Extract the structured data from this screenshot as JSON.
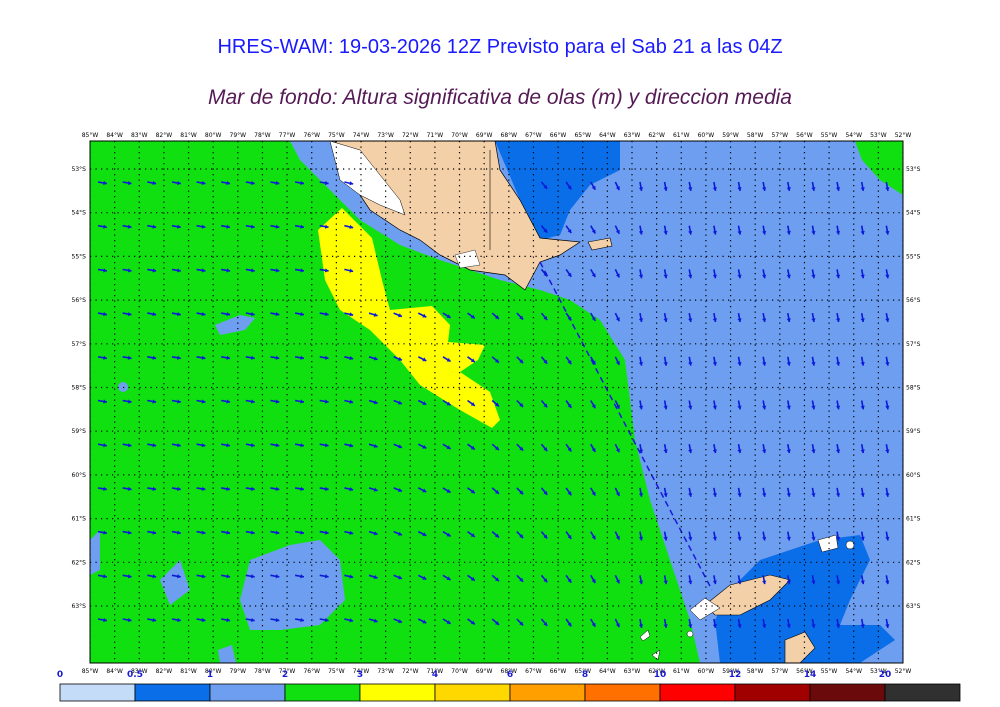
{
  "header": {
    "title": "HRES-WAM: 19-03-2026 12Z Previsto para el Sab 21 a las 04Z",
    "subtitle": "Mar de fondo: Altura significativa de olas (m) y direccion media"
  },
  "map": {
    "lon_labels": [
      "85°W",
      "84°W",
      "83°W",
      "82°W",
      "81°W",
      "80°W",
      "79°W",
      "78°W",
      "77°W",
      "76°W",
      "75°W",
      "74°W",
      "73°W",
      "72°W",
      "71°W",
      "70°W",
      "69°W",
      "68°W",
      "67°W",
      "66°W",
      "65°W",
      "64°W",
      "63°W",
      "62°W",
      "61°W",
      "60°W",
      "59°W",
      "58°W",
      "57°W",
      "56°W",
      "55°W",
      "54°W",
      "53°W",
      "52°W"
    ],
    "lat_labels": [
      "53°S",
      "54°S",
      "55°S",
      "56°S",
      "57°S",
      "58°S",
      "59°S",
      "60°S",
      "61°S",
      "62°S",
      "63°S"
    ],
    "colors": {
      "land": "#f4d0a8",
      "ice": "#ffffff",
      "arrow": "#0a1ad8",
      "grid": "#000000"
    }
  },
  "colorbar": {
    "ticks": [
      "0",
      "0.5",
      "1",
      "2",
      "3",
      "4",
      "6",
      "8",
      "10",
      "12",
      "14",
      "20"
    ],
    "colors": [
      "#c4dcf8",
      "#0a6ee8",
      "#6e9ef0",
      "#10e010",
      "#ffff00",
      "#ffd800",
      "#ffa000",
      "#ff7000",
      "#ff0000",
      "#a00000",
      "#6a0a0a",
      "#303030"
    ]
  }
}
